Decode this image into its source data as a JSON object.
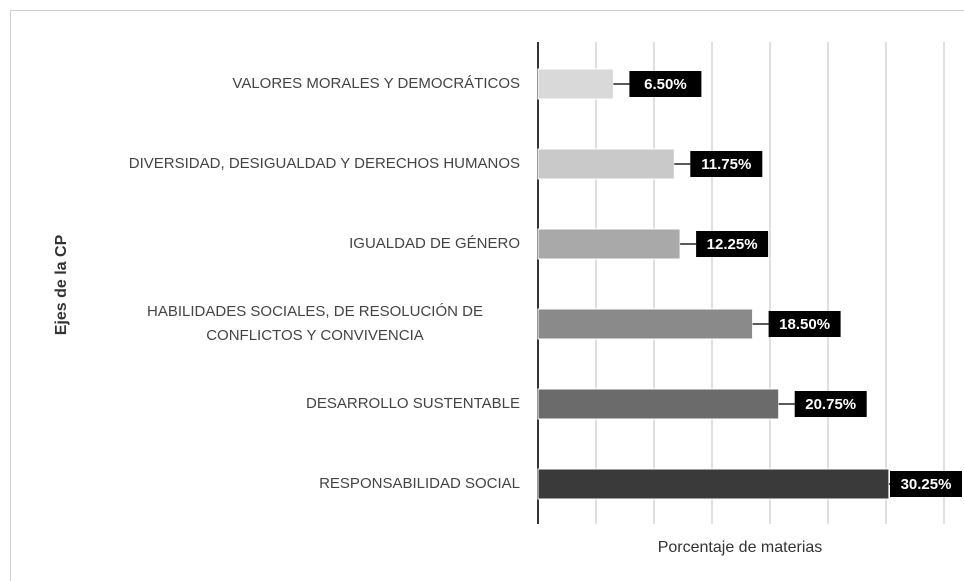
{
  "chart_data": {
    "type": "barh",
    "categories": [
      "VALORES MORALES Y DEMOCRÁTICOS",
      "DIVERSIDAD, DESIGUALDAD Y DERECHOS HUMANOS",
      "IGUALDAD DE GÉNERO",
      "HABILIDADES SOCIALES, DE RESOLUCIÓN DE CONFLICTOS Y CONVIVENCIA",
      "DESARROLLO SUSTENTABLE",
      "RESPONSABILIDAD SOCIAL"
    ],
    "values": [
      6.5,
      11.75,
      12.25,
      18.5,
      20.75,
      30.25
    ],
    "value_labels": [
      "6.50%",
      "11.75%",
      "12.25%",
      "18.50%",
      "20.75%",
      "30.25%"
    ],
    "colors": [
      "#d9d9d9",
      "#c9c9c9",
      "#a9a9a9",
      "#8a8a8a",
      "#6b6b6b",
      "#3a3a3a"
    ],
    "xlabel": "Porcentaje de materias",
    "ylabel": "Ejes de la CP",
    "xlim": [
      0,
      35
    ],
    "xticks": [
      0,
      5,
      10,
      15,
      20,
      25,
      30,
      35
    ],
    "grid": true
  }
}
